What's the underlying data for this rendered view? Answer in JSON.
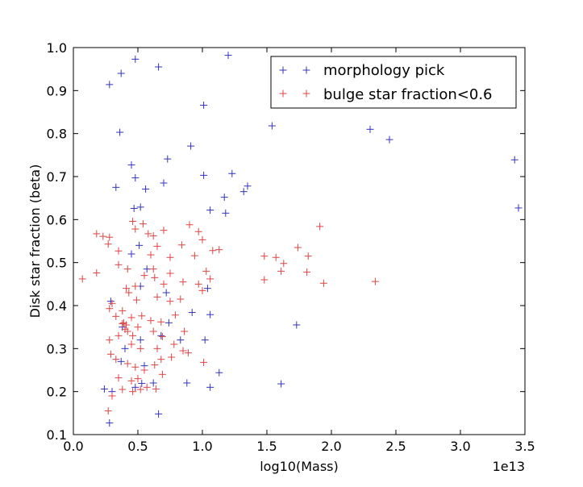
{
  "chart_data": {
    "type": "scatter",
    "title": "",
    "xlabel": "log10(Mass)",
    "ylabel": "Disk star fraction (beta)",
    "x_offset_label": "1e13",
    "xlim": [
      0.0,
      3.5
    ],
    "ylim": [
      0.1,
      1.0
    ],
    "xticks": [
      "0.0",
      "0.5",
      "1.0",
      "1.5",
      "2.0",
      "2.5",
      "3.0",
      "3.5"
    ],
    "yticks": [
      "0.1",
      "0.2",
      "0.3",
      "0.4",
      "0.5",
      "0.6",
      "0.7",
      "0.8",
      "0.9",
      "1.0"
    ],
    "grid": false,
    "legend_position": "top-right",
    "marker": "+",
    "series": [
      {
        "name": "morphology pick",
        "color": "#3333bb",
        "points": [
          [
            0.48,
            0.973
          ],
          [
            0.66,
            0.955
          ],
          [
            1.2,
            0.982
          ],
          [
            0.37,
            0.94
          ],
          [
            0.28,
            0.914
          ],
          [
            1.01,
            0.866
          ],
          [
            1.54,
            0.818
          ],
          [
            2.3,
            0.81
          ],
          [
            0.36,
            0.803
          ],
          [
            2.45,
            0.786
          ],
          [
            0.91,
            0.771
          ],
          [
            0.73,
            0.741
          ],
          [
            3.42,
            0.739
          ],
          [
            0.45,
            0.727
          ],
          [
            1.23,
            0.707
          ],
          [
            1.01,
            0.703
          ],
          [
            0.48,
            0.697
          ],
          [
            0.7,
            0.685
          ],
          [
            1.35,
            0.678
          ],
          [
            0.33,
            0.675
          ],
          [
            0.56,
            0.671
          ],
          [
            1.32,
            0.665
          ],
          [
            1.17,
            0.652
          ],
          [
            0.52,
            0.629
          ],
          [
            0.47,
            0.626
          ],
          [
            1.06,
            0.622
          ],
          [
            3.45,
            0.627
          ],
          [
            1.18,
            0.615
          ],
          [
            0.28,
            0.127
          ],
          [
            0.24,
            0.206
          ],
          [
            0.3,
            0.2
          ],
          [
            0.66,
            0.148
          ],
          [
            0.48,
            0.21
          ],
          [
            0.53,
            0.219
          ],
          [
            0.88,
            0.22
          ],
          [
            1.06,
            0.21
          ],
          [
            1.61,
            0.218
          ],
          [
            1.13,
            0.244
          ],
          [
            0.55,
            0.26
          ],
          [
            0.4,
            0.3
          ],
          [
            0.52,
            0.32
          ],
          [
            1.02,
            0.32
          ],
          [
            0.68,
            0.33
          ],
          [
            0.74,
            0.36
          ],
          [
            0.92,
            0.384
          ],
          [
            1.06,
            0.379
          ],
          [
            1.73,
            0.355
          ],
          [
            0.29,
            0.41
          ],
          [
            0.52,
            0.445
          ],
          [
            0.72,
            0.43
          ],
          [
            0.57,
            0.485
          ],
          [
            1.04,
            0.44
          ],
          [
            0.45,
            0.52
          ],
          [
            0.51,
            0.54
          ],
          [
            0.38,
            0.35
          ],
          [
            0.83,
            0.32
          ],
          [
            0.62,
            0.22
          ],
          [
            0.37,
            0.27
          ]
        ]
      },
      {
        "name": "bulge star fraction<0.6",
        "color": "#dd4444",
        "points": [
          [
            0.07,
            0.462
          ],
          [
            0.18,
            0.476
          ],
          [
            0.18,
            0.567
          ],
          [
            0.23,
            0.561
          ],
          [
            0.28,
            0.559
          ],
          [
            0.27,
            0.543
          ],
          [
            0.35,
            0.527
          ],
          [
            0.35,
            0.495
          ],
          [
            0.42,
            0.485
          ],
          [
            0.46,
            0.596
          ],
          [
            0.48,
            0.578
          ],
          [
            0.54,
            0.59
          ],
          [
            0.58,
            0.567
          ],
          [
            0.62,
            0.562
          ],
          [
            0.7,
            0.575
          ],
          [
            0.84,
            0.541
          ],
          [
            0.9,
            0.588
          ],
          [
            0.97,
            0.572
          ],
          [
            1.0,
            0.553
          ],
          [
            1.08,
            0.528
          ],
          [
            1.13,
            0.53
          ],
          [
            0.65,
            0.538
          ],
          [
            0.6,
            0.518
          ],
          [
            0.75,
            0.512
          ],
          [
            0.94,
            0.516
          ],
          [
            1.48,
            0.515
          ],
          [
            1.57,
            0.512
          ],
          [
            1.74,
            0.535
          ],
          [
            1.82,
            0.515
          ],
          [
            1.91,
            0.584
          ],
          [
            1.63,
            0.498
          ],
          [
            1.61,
            0.48
          ],
          [
            1.81,
            0.478
          ],
          [
            1.48,
            0.46
          ],
          [
            1.94,
            0.452
          ],
          [
            2.34,
            0.456
          ],
          [
            1.06,
            0.462
          ],
          [
            0.85,
            0.455
          ],
          [
            0.75,
            0.475
          ],
          [
            0.63,
            0.465
          ],
          [
            0.41,
            0.44
          ],
          [
            0.49,
            0.413
          ],
          [
            0.65,
            0.42
          ],
          [
            0.75,
            0.41
          ],
          [
            0.83,
            0.415
          ],
          [
            0.3,
            0.405
          ],
          [
            0.28,
            0.393
          ],
          [
            0.38,
            0.388
          ],
          [
            0.45,
            0.372
          ],
          [
            0.53,
            0.376
          ],
          [
            0.6,
            0.365
          ],
          [
            0.68,
            0.362
          ],
          [
            0.79,
            0.378
          ],
          [
            0.33,
            0.375
          ],
          [
            0.38,
            0.358
          ],
          [
            0.4,
            0.345
          ],
          [
            0.42,
            0.34
          ],
          [
            0.46,
            0.33
          ],
          [
            0.5,
            0.35
          ],
          [
            0.62,
            0.34
          ],
          [
            0.69,
            0.328
          ],
          [
            0.86,
            0.34
          ],
          [
            0.35,
            0.33
          ],
          [
            0.45,
            0.31
          ],
          [
            0.52,
            0.3
          ],
          [
            0.65,
            0.3
          ],
          [
            0.78,
            0.31
          ],
          [
            0.85,
            0.295
          ],
          [
            0.28,
            0.32
          ],
          [
            0.29,
            0.287
          ],
          [
            0.33,
            0.275
          ],
          [
            0.42,
            0.265
          ],
          [
            0.48,
            0.257
          ],
          [
            0.55,
            0.25
          ],
          [
            0.63,
            0.262
          ],
          [
            0.68,
            0.275
          ],
          [
            0.76,
            0.28
          ],
          [
            0.89,
            0.29
          ],
          [
            1.01,
            0.268
          ],
          [
            0.35,
            0.232
          ],
          [
            0.45,
            0.225
          ],
          [
            0.5,
            0.23
          ],
          [
            0.57,
            0.21
          ],
          [
            0.64,
            0.206
          ],
          [
            0.69,
            0.24
          ],
          [
            0.38,
            0.205
          ],
          [
            0.46,
            0.2
          ],
          [
            0.3,
            0.19
          ],
          [
            0.27,
            0.155
          ],
          [
            0.52,
            0.205
          ],
          [
            0.43,
            0.43
          ],
          [
            0.48,
            0.445
          ],
          [
            0.55,
            0.47
          ],
          [
            0.62,
            0.485
          ],
          [
            0.7,
            0.45
          ],
          [
            0.97,
            0.45
          ],
          [
            1.0,
            0.435
          ],
          [
            1.03,
            0.48
          ],
          [
            0.39,
            0.36
          ],
          [
            0.41,
            0.355
          ]
        ]
      }
    ]
  }
}
